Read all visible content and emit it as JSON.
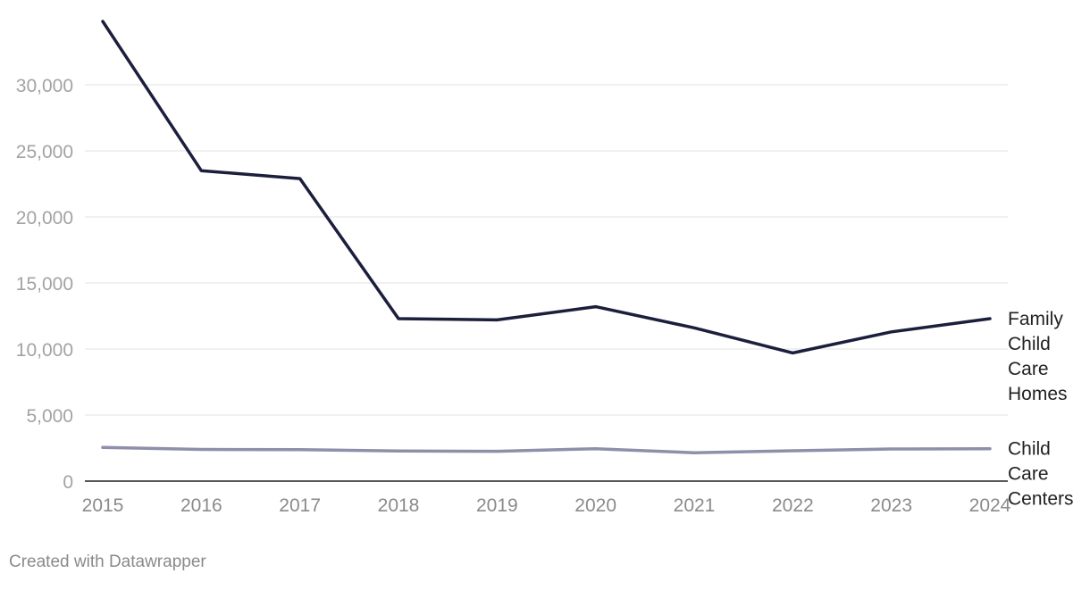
{
  "chart_data": {
    "type": "line",
    "title": "",
    "xlabel": "",
    "ylabel": "",
    "x": [
      2015,
      2016,
      2017,
      2018,
      2019,
      2020,
      2021,
      2022,
      2023,
      2024
    ],
    "y_ticks": [
      0,
      5000,
      10000,
      15000,
      20000,
      25000,
      30000
    ],
    "y_tick_labels": [
      "0",
      "5,000",
      "10,000",
      "15,000",
      "20,000",
      "25,000",
      "30,000"
    ],
    "ylim": [
      0,
      35000
    ],
    "grid": "horizontal",
    "legend": "direct labels at line ends",
    "series": [
      {
        "name": "Family Child Care Homes",
        "label_lines": [
          "Family",
          "Child",
          "Care",
          "Homes"
        ],
        "color": "#1b1f3b",
        "values": [
          34800,
          23500,
          22900,
          12300,
          12200,
          13200,
          11600,
          9700,
          11300,
          12300
        ]
      },
      {
        "name": "Child Care Centers",
        "label_lines": [
          "Child",
          "Care",
          "Centers"
        ],
        "color": "#8e90aa",
        "values": [
          2550,
          2400,
          2380,
          2280,
          2260,
          2450,
          2150,
          2300,
          2430,
          2450
        ]
      }
    ]
  },
  "footer": {
    "credit": "Created with Datawrapper"
  }
}
